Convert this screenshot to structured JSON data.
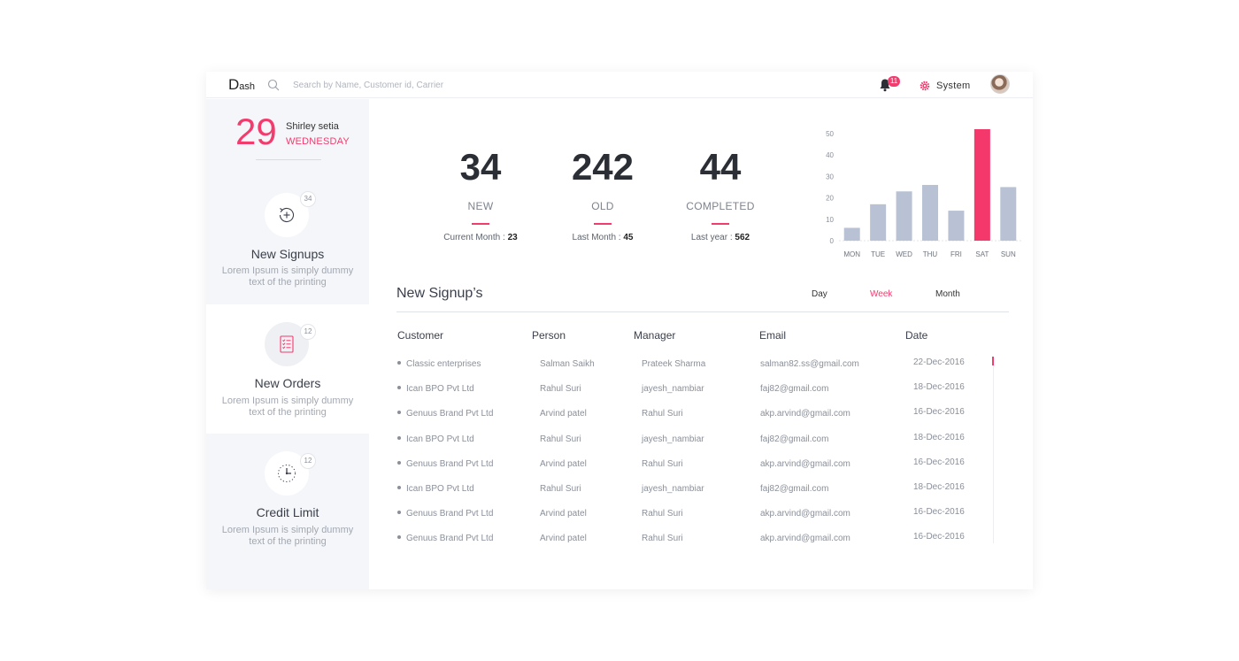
{
  "header": {
    "logo_big": "D",
    "logo_small": "ash",
    "search_placeholder": "Search by Name, Customer id, Carrier",
    "notification_count": "11",
    "system_label": "System"
  },
  "sidebar": {
    "date_number": "29",
    "user_name": "Shirley setia",
    "day_name": "WEDNESDAY",
    "cards": [
      {
        "title": "New Signups",
        "badge": "34",
        "desc": "Lorem Ipsum is simply dummy text of the printing",
        "icon": "signup-clock-icon"
      },
      {
        "title": "New Orders",
        "badge": "12",
        "desc": "Lorem Ipsum is simply dummy text of the printing",
        "icon": "order-list-icon"
      },
      {
        "title": "Credit Limit",
        "badge": "12",
        "desc": "Lorem Ipsum is simply dummy text of the printing",
        "icon": "clock-icon"
      }
    ]
  },
  "stats": [
    {
      "value": "34",
      "label": "NEW",
      "sub_label": "Current Month : ",
      "sub_value": "23"
    },
    {
      "value": "242",
      "label": "OLD",
      "sub_label": "Last Month : ",
      "sub_value": "45"
    },
    {
      "value": "44",
      "label": "COMPLETED",
      "sub_label": "Last year : ",
      "sub_value": "562"
    }
  ],
  "chart_data": {
    "type": "bar",
    "categories": [
      "MON",
      "TUE",
      "WED",
      "THU",
      "FRI",
      "SAT",
      "SUN"
    ],
    "values": [
      6,
      17,
      23,
      26,
      14,
      52,
      25
    ],
    "yticks": [
      0,
      10,
      20,
      30,
      40,
      50
    ],
    "ylim": [
      0,
      52
    ],
    "highlight_index": 5,
    "colors": {
      "bar": "#b8c2d4",
      "highlight": "#f5386c"
    },
    "grid": false
  },
  "signups": {
    "title": "New Signup’s",
    "ranges": [
      "Day",
      "Week",
      "Month"
    ],
    "active_range": "Week",
    "columns": [
      "Customer",
      "Person",
      "Manager",
      "Email",
      "Date"
    ],
    "rows": [
      {
        "customer": "Classic enterprises",
        "person": "Salman Saikh",
        "manager": "Prateek Sharma",
        "email": "salman82.ss@gmail.com",
        "date": "22-Dec-2016"
      },
      {
        "customer": "Ican BPO Pvt Ltd",
        "person": "Rahul Suri",
        "manager": "jayesh_nambiar",
        "email": "faj82@gmail.com",
        "date": "18-Dec-2016"
      },
      {
        "customer": "Genuus Brand Pvt Ltd",
        "person": "Arvind patel",
        "manager": "Rahul Suri",
        "email": "akp.arvind@gmail.com",
        "date": "16-Dec-2016"
      },
      {
        "customer": "Ican BPO Pvt Ltd",
        "person": "Rahul Suri",
        "manager": "jayesh_nambiar",
        "email": "faj82@gmail.com",
        "date": "18-Dec-2016"
      },
      {
        "customer": "Genuus Brand Pvt Ltd",
        "person": "Arvind patel",
        "manager": "Rahul Suri",
        "email": "akp.arvind@gmail.com",
        "date": "16-Dec-2016"
      },
      {
        "customer": "Ican BPO Pvt Ltd",
        "person": "Rahul Suri",
        "manager": "jayesh_nambiar",
        "email": "faj82@gmail.com",
        "date": "18-Dec-2016"
      },
      {
        "customer": "Genuus Brand Pvt Ltd",
        "person": "Arvind patel",
        "manager": "Rahul Suri",
        "email": "akp.arvind@gmail.com",
        "date": "16-Dec-2016"
      },
      {
        "customer": "Genuus Brand Pvt Ltd",
        "person": "Arvind patel",
        "manager": "Rahul Suri",
        "email": "akp.arvind@gmail.com",
        "date": "16-Dec-2016"
      }
    ]
  }
}
